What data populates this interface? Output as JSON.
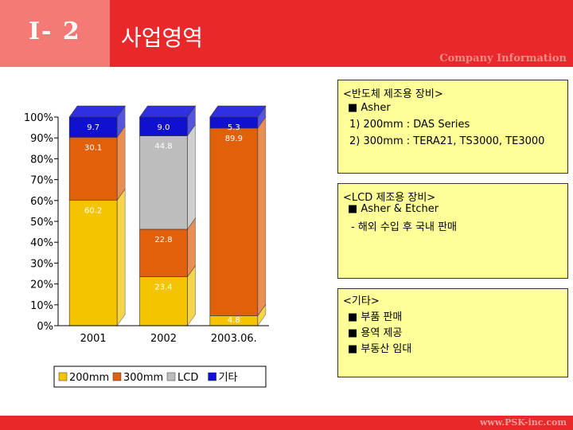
{
  "header": {
    "section_no": "Ⅰ- 2",
    "title": "사업영역",
    "subtitle": "Company Information"
  },
  "footer": {
    "url": "www.PSK-inc.com"
  },
  "boxes": [
    {
      "lines": [
        "<반도체 제조용 장비>",
        "■ Asher",
        "1) 200mm : DAS Series",
        "2) 300mm : TERA21, TS3000, TE3000"
      ]
    },
    {
      "lines": [
        "<LCD 제조용 장비>",
        "■ Asher & Etcher",
        "- 해외 수입 후 국내 판매"
      ]
    },
    {
      "lines": [
        "<기타>",
        "■ 부품 판매",
        "■ 용역 제공",
        "■ 부동산 임대"
      ]
    }
  ],
  "chart_data": {
    "type": "bar",
    "stacked": true,
    "percent": true,
    "categories": [
      "2001",
      "2002",
      "2003.06."
    ],
    "y_ticks": [
      "0%",
      "10%",
      "20%",
      "30%",
      "40%",
      "50%",
      "60%",
      "70%",
      "80%",
      "90%",
      "100%"
    ],
    "ylim": [
      0,
      100
    ],
    "legend_position": "bottom",
    "series": [
      {
        "name": "200mm",
        "values": [
          60.2,
          23.4,
          4.8
        ],
        "labels": [
          "60.2",
          "23.4",
          "4.8"
        ],
        "color": "#f5c400"
      },
      {
        "name": "300mm",
        "values": [
          30.1,
          22.8,
          89.9
        ],
        "labels": [
          "30.1",
          "22.8",
          "89.9"
        ],
        "color": "#e0600c"
      },
      {
        "name": "LCD",
        "values": [
          0,
          44.8,
          0
        ],
        "labels": [
          "",
          "44.8",
          ""
        ],
        "color": "#bdbdbd"
      },
      {
        "name": "기타",
        "values": [
          9.7,
          9.0,
          5.3
        ],
        "labels": [
          "9.7",
          "9.0",
          "5.3"
        ],
        "color": "#1010d0"
      }
    ]
  }
}
